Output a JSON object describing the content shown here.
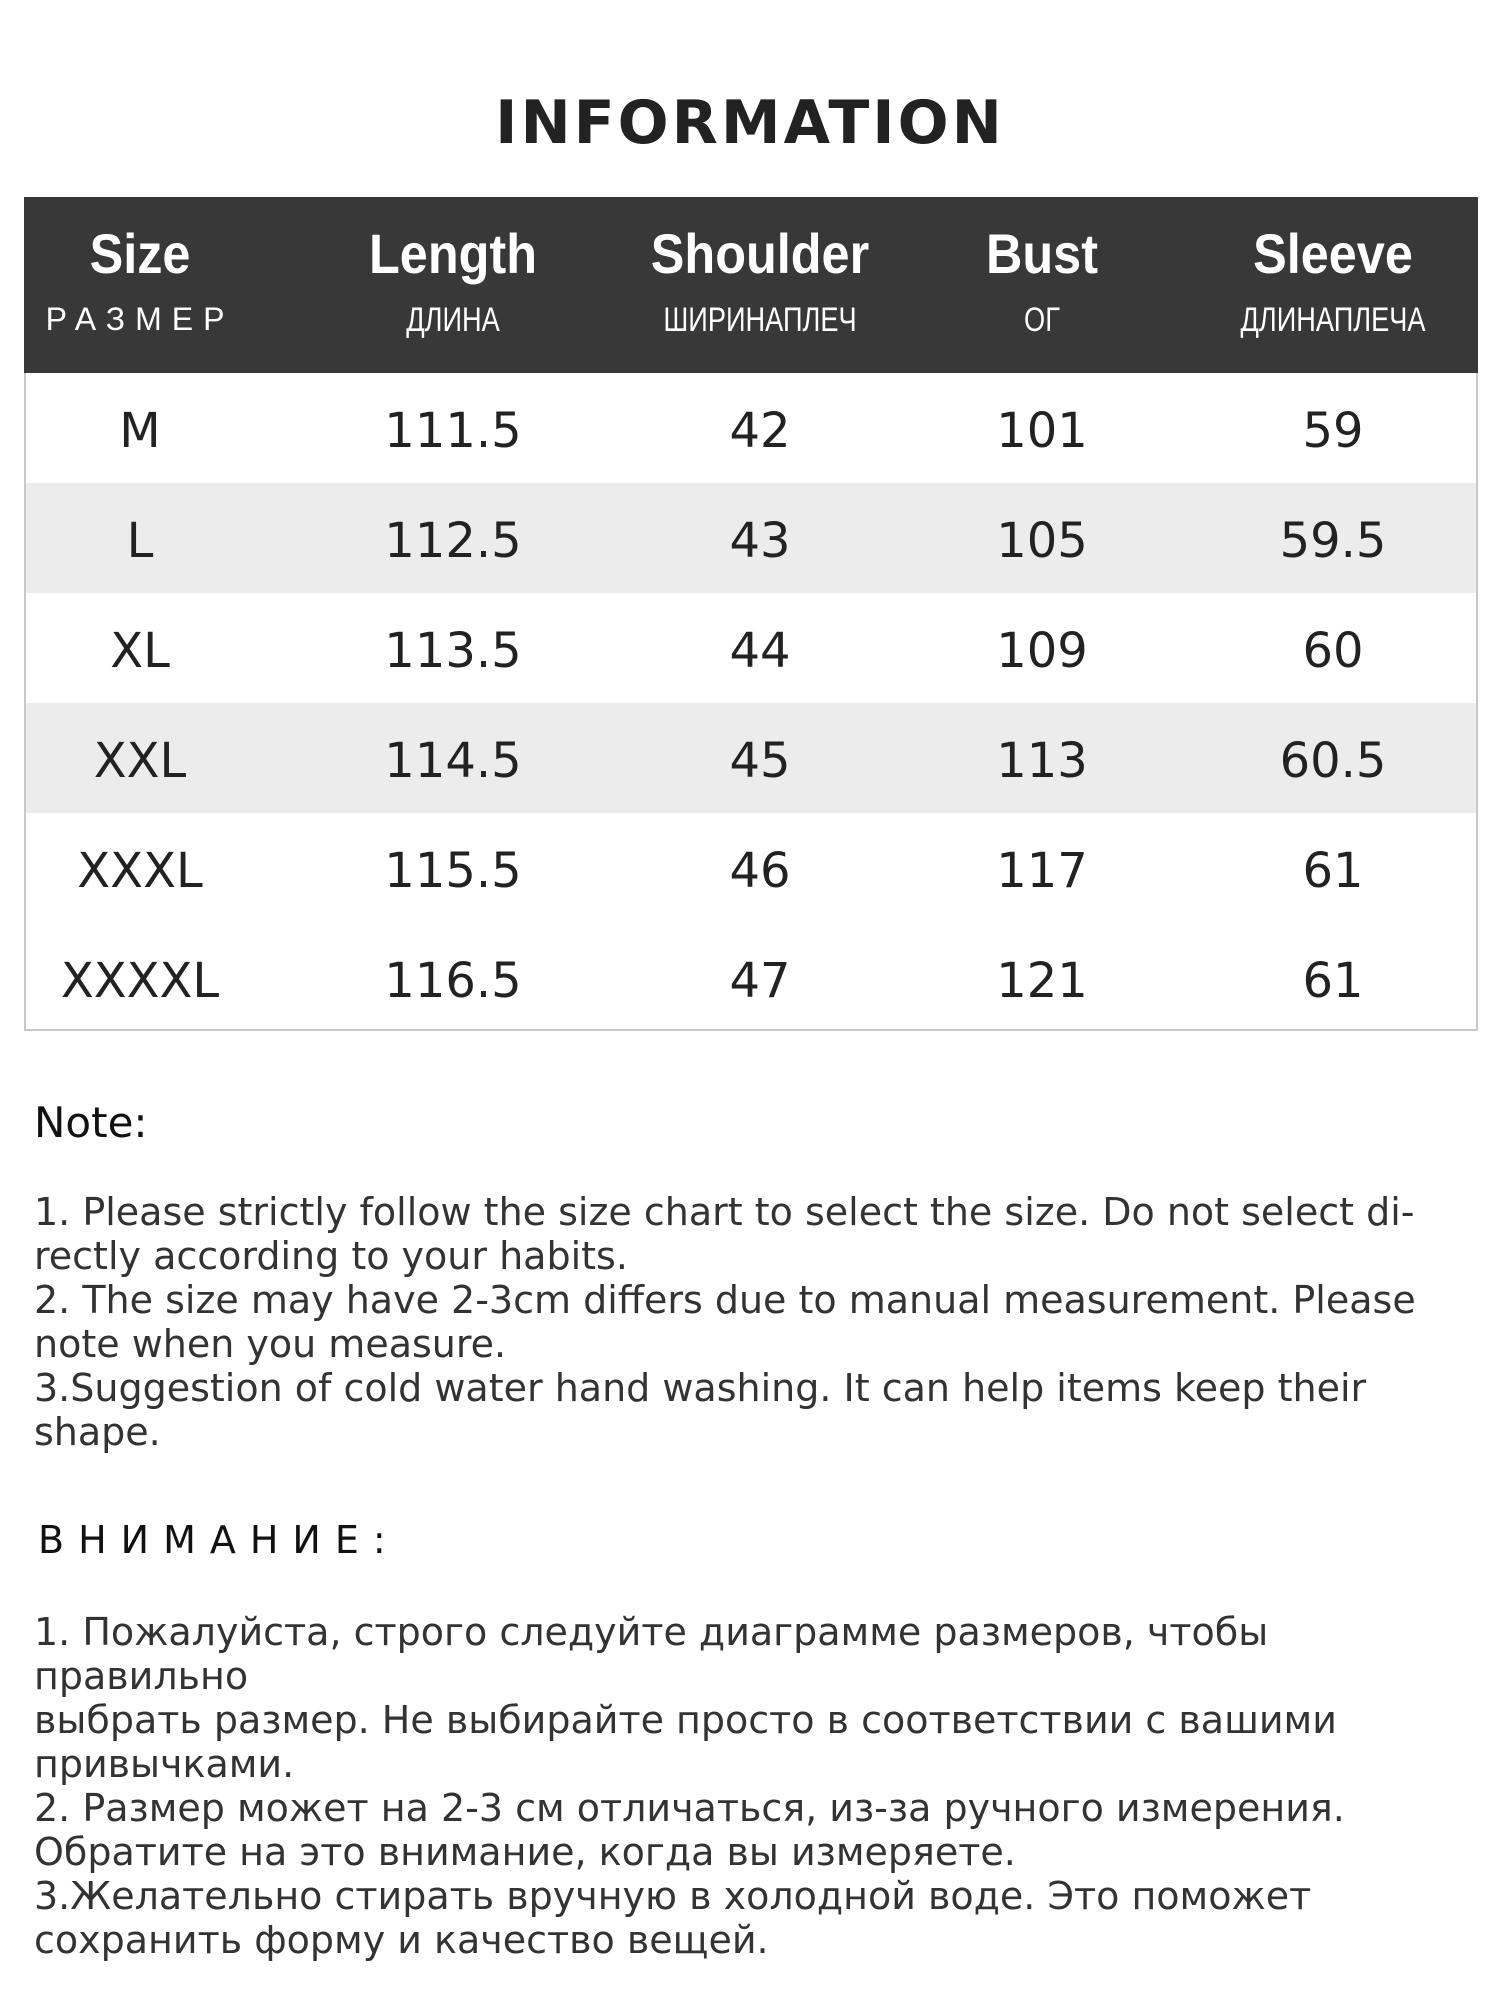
{
  "title": "INFORMATION",
  "table": {
    "headers": [
      {
        "en": "Size",
        "ru": "РАЗМЕР"
      },
      {
        "en": "Length",
        "ru": "ДЛИНА"
      },
      {
        "en": "Shoulder",
        "ru": "ШИРИНАПЛЕЧ"
      },
      {
        "en": "Bust",
        "ru": "ОГ"
      },
      {
        "en": "Sleeve",
        "ru": "ДЛИНАПЛЕЧА"
      }
    ],
    "rows": [
      [
        "M",
        "111.5",
        "42",
        "101",
        "59"
      ],
      [
        "L",
        "112.5",
        "43",
        "105",
        "59.5"
      ],
      [
        "XL",
        "113.5",
        "44",
        "109",
        "60"
      ],
      [
        "XXL",
        "114.5",
        "45",
        "113",
        "60.5"
      ],
      [
        "XXXL",
        "115.5",
        "46",
        "117",
        "61"
      ],
      [
        "XXXXL",
        "116.5",
        "47",
        "121",
        "61"
      ]
    ]
  },
  "note": {
    "heading": "Note:",
    "lines": [
      "1. Please strictly follow the size chart  to select the size. Do not select di-",
      "rectly according to your habits.",
      "2. The size may have 2-3cm differs due to manual measurement. Please",
      "note when you measure.",
      "3.Suggestion of cold water hand washing. It can help items keep their",
      "shape."
    ]
  },
  "note_ru": {
    "heading": "ВНИМАНИЕ:",
    "lines": [
      "1. Пожалуйста, строго следуйте диаграмме размеров, чтобы правильно",
      "выбрать размер. Не выбирайте просто в соответствии с вашими",
      "привычками.",
      "2. Размер может на 2-3 см отличаться, из-за ручного измерения.",
      "Обратите на это внимание, когда вы измеряете.",
      "3.Желательно стирать вручную в холодной воде. Это поможет",
      "сохранить форму и качество вещей."
    ]
  }
}
